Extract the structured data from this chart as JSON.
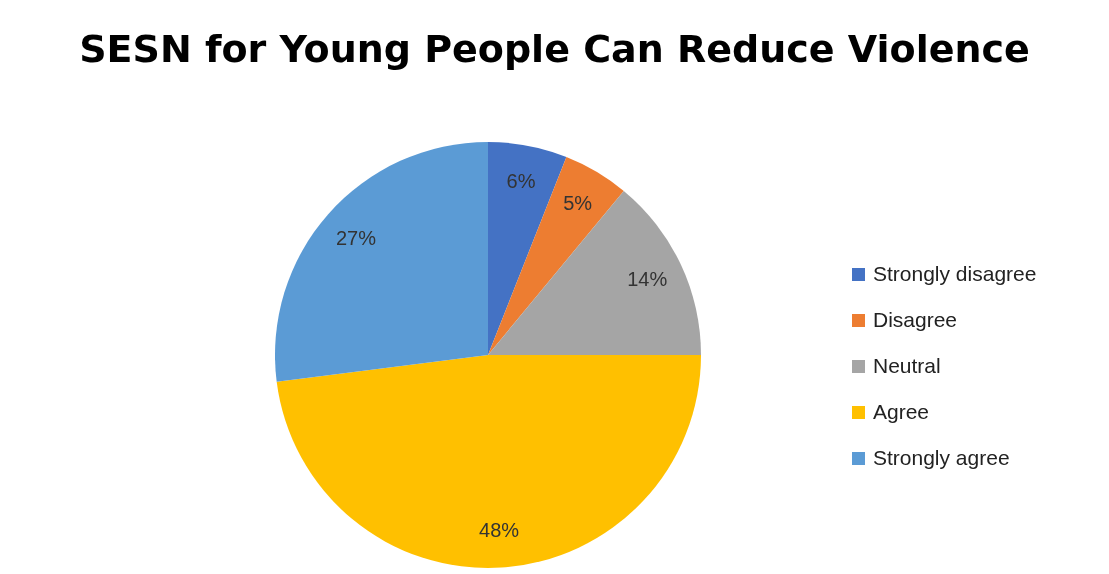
{
  "chart_data": {
    "type": "pie",
    "title": "SESN for Young People Can Reduce Violence",
    "categories": [
      "Strongly disagree",
      "Disagree",
      "Neutral",
      "Agree",
      "Strongly agree"
    ],
    "values": [
      6,
      5,
      14,
      48,
      27
    ],
    "value_labels": [
      "6%",
      "5%",
      "14%",
      "48%",
      "27%"
    ],
    "colors": [
      "#4472c4",
      "#ed7d31",
      "#a5a5a5",
      "#ffc000",
      "#5b9bd5"
    ],
    "legend": "right"
  }
}
